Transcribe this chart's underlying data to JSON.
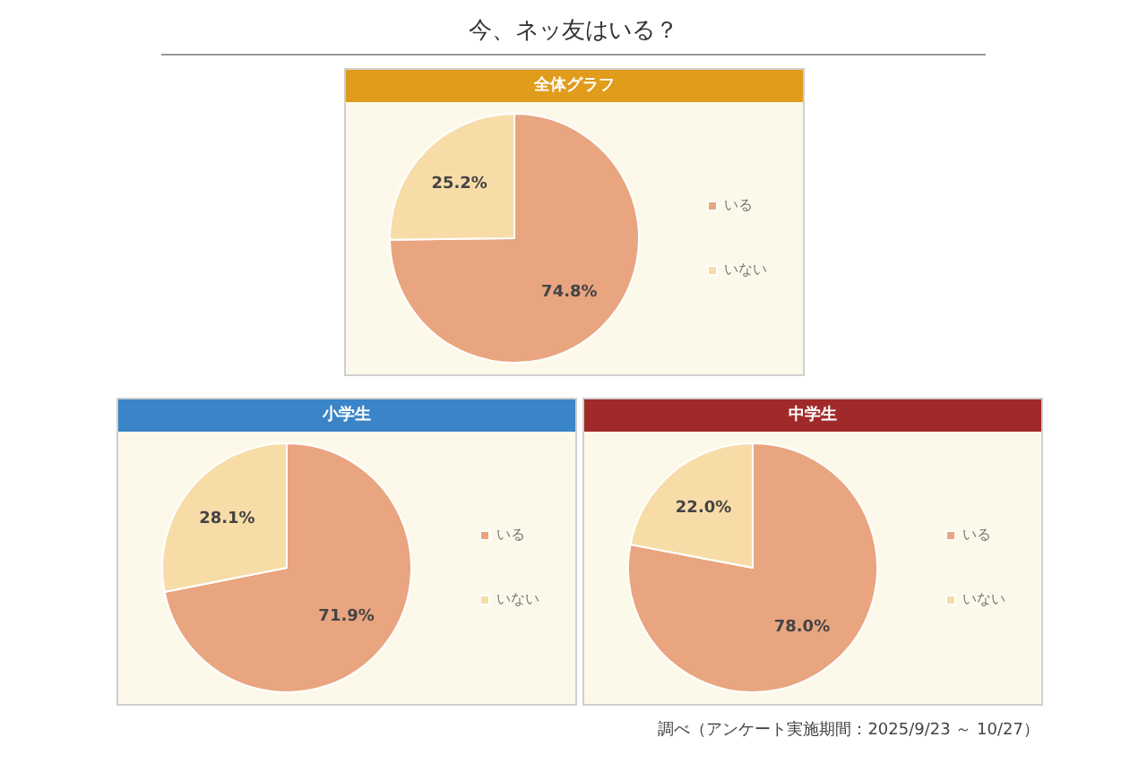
{
  "chart_data": [
    {
      "type": "pie",
      "title": "今、ネッ友はいる？",
      "subtitle": "全体グラフ",
      "categories": [
        "いる",
        "いない"
      ],
      "values": [
        74.8,
        25.2
      ],
      "value_labels": [
        "74.8%",
        "25.2%"
      ],
      "colors": [
        "#e9a580",
        "#f8dca8"
      ],
      "legend": "right"
    },
    {
      "type": "pie",
      "subtitle": "小学生",
      "categories": [
        "いる",
        "いない"
      ],
      "values": [
        71.9,
        28.1
      ],
      "value_labels": [
        "71.9%",
        "28.1%"
      ],
      "colors": [
        "#e9a580",
        "#f8dca8"
      ],
      "legend": "right"
    },
    {
      "type": "pie",
      "subtitle": "中学生",
      "categories": [
        "いる",
        "いない"
      ],
      "values": [
        78.0,
        22.0
      ],
      "value_labels": [
        "78.0%",
        "22.0%"
      ],
      "colors": [
        "#e9a580",
        "#f8dca8"
      ],
      "legend": "right",
      "annotations": [
        "調べ（アンケート実施期間：2025/9/23 ～ 10/27）"
      ]
    }
  ]
}
